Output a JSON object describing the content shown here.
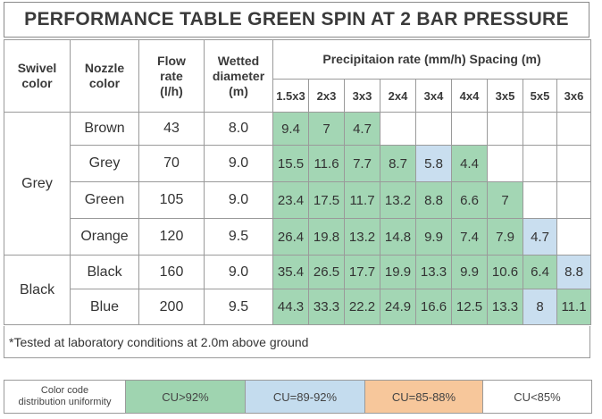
{
  "title": "PERFORMANCE TABLE GREEN SPIN AT 2 BAR PRESSURE",
  "headers": {
    "swivel": [
      "Swivel",
      "color"
    ],
    "nozzle": [
      "Nozzle",
      "color"
    ],
    "flow": [
      "Flow",
      "rate",
      "(l/h)"
    ],
    "wetted": [
      "Wetted",
      "diameter",
      "(m)"
    ],
    "precip": "Precipitaion rate (mm/h) Spacing (m)",
    "spacings": [
      "1.5x3",
      "2x3",
      "3x3",
      "2x4",
      "3x4",
      "4x4",
      "3x5",
      "5x5",
      "3x6"
    ]
  },
  "groups": [
    {
      "swivel": "Grey",
      "rows": [
        {
          "nozzle": "Brown",
          "flow": "43",
          "wetted": "8.0",
          "rates": [
            "9.4",
            "7",
            "4.7",
            "",
            "",
            "",
            "",
            "",
            ""
          ],
          "classes": [
            "g",
            "g",
            "g",
            "",
            "",
            "",
            "",
            "",
            ""
          ]
        },
        {
          "nozzle": "Grey",
          "flow": "70",
          "wetted": "9.0",
          "rates": [
            "15.5",
            "11.6",
            "7.7",
            "8.7",
            "5.8",
            "4.4",
            "",
            "",
            ""
          ],
          "classes": [
            "g",
            "g",
            "g",
            "g",
            "b",
            "g",
            "",
            "",
            ""
          ]
        },
        {
          "nozzle": "Green",
          "flow": "105",
          "wetted": "9.0",
          "rates": [
            "23.4",
            "17.5",
            "11.7",
            "13.2",
            "8.8",
            "6.6",
            "7",
            "",
            ""
          ],
          "classes": [
            "g",
            "g",
            "g",
            "g",
            "g",
            "g",
            "g",
            "",
            ""
          ]
        },
        {
          "nozzle": "Orange",
          "flow": "120",
          "wetted": "9.5",
          "rates": [
            "26.4",
            "19.8",
            "13.2",
            "14.8",
            "9.9",
            "7.4",
            "7.9",
            "4.7",
            ""
          ],
          "classes": [
            "g",
            "g",
            "g",
            "g",
            "g",
            "g",
            "g",
            "b",
            ""
          ]
        }
      ]
    },
    {
      "swivel": "Black",
      "rows": [
        {
          "nozzle": "Black",
          "flow": "160",
          "wetted": "9.0",
          "rates": [
            "35.4",
            "26.5",
            "17.7",
            "19.9",
            "13.3",
            "9.9",
            "10.6",
            "6.4",
            "8.8"
          ],
          "classes": [
            "g",
            "g",
            "g",
            "g",
            "g",
            "g",
            "g",
            "g",
            "b"
          ]
        },
        {
          "nozzle": "Blue",
          "flow": "200",
          "wetted": "9.5",
          "rates": [
            "44.3",
            "33.3",
            "22.2",
            "24.9",
            "16.6",
            "12.5",
            "13.3",
            "8",
            "11.1"
          ],
          "classes": [
            "g",
            "g",
            "g",
            "g",
            "g",
            "g",
            "g",
            "b",
            "g"
          ]
        }
      ]
    }
  ],
  "note": "*Tested at laboratory conditions at 2.0m above ground",
  "legend": {
    "label": [
      "Color code",
      "distribution uniformity"
    ],
    "items": [
      {
        "text": "CU>92%",
        "color": "#9fd4b0"
      },
      {
        "text": "CU=89-92%",
        "color": "#c4dcee"
      },
      {
        "text": "CU=85-88%",
        "color": "#f7c79b"
      },
      {
        "text": "CU<85%",
        "color": "#ffffff"
      }
    ]
  },
  "colors": {
    "g": "#a3d6b4",
    "b": "#c9deef",
    "": "#ffffff"
  }
}
